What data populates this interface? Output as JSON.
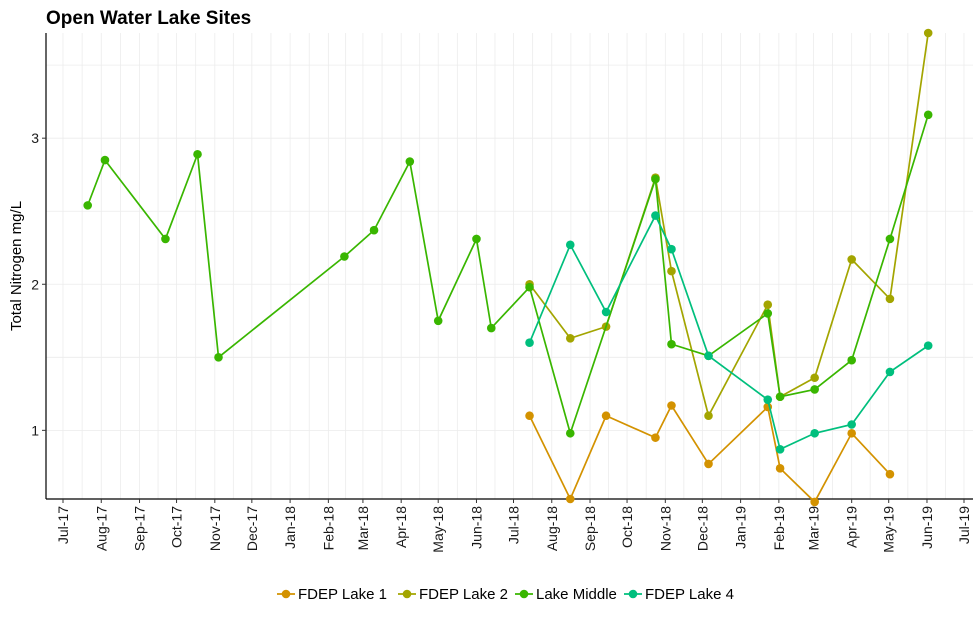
{
  "chart_data": {
    "type": "line",
    "title": "Open Water Lake Sites",
    "xlabel": "",
    "ylabel": "Total Nitrogen mg/L",
    "ylim": [
      0.53,
      3.72
    ],
    "yticks": [
      1,
      2,
      3
    ],
    "xlim": [
      "2017-07-01",
      "2019-07-01"
    ],
    "xtick_labels": [
      "Jul-17",
      "Aug-17",
      "Sep-17",
      "Oct-17",
      "Nov-17",
      "Dec-17",
      "Jan-18",
      "Feb-18",
      "Mar-18",
      "Apr-18",
      "May-18",
      "Jun-18",
      "Jul-18",
      "Aug-18",
      "Sep-18",
      "Oct-18",
      "Nov-18",
      "Dec-18",
      "Jan-19",
      "Feb-19",
      "Mar-19",
      "Apr-19",
      "May-19",
      "Jun-19",
      "Jul-19"
    ],
    "grid": true,
    "legend_position": "bottom",
    "series": [
      {
        "name": "FDEP Lake 1",
        "color": "#D39200",
        "points": [
          [
            "2018-07-14",
            1.1
          ],
          [
            "2018-08-16",
            0.53
          ],
          [
            "2018-09-14",
            1.1
          ],
          [
            "2018-10-24",
            0.95
          ],
          [
            "2018-11-06",
            1.17
          ],
          [
            "2018-12-06",
            0.77
          ],
          [
            "2019-01-23",
            1.16
          ],
          [
            "2019-02-02",
            0.74
          ],
          [
            "2019-03-02",
            0.51
          ],
          [
            "2019-04-01",
            0.98
          ],
          [
            "2019-05-02",
            0.7
          ]
        ]
      },
      {
        "name": "FDEP Lake 2",
        "color": "#A3A500",
        "points": [
          [
            "2018-07-14",
            2.0
          ],
          [
            "2018-08-16",
            1.63
          ],
          [
            "2018-09-14",
            1.71
          ],
          [
            "2018-10-24",
            2.73
          ],
          [
            "2018-11-06",
            2.09
          ],
          [
            "2018-12-06",
            1.1
          ],
          [
            "2019-01-23",
            1.86
          ],
          [
            "2019-02-02",
            1.23
          ],
          [
            "2019-03-02",
            1.36
          ],
          [
            "2019-04-01",
            2.17
          ],
          [
            "2019-05-02",
            1.9
          ],
          [
            "2019-06-02",
            3.72
          ]
        ]
      },
      {
        "name": "Lake Middle",
        "color": "#39B600",
        "points": [
          [
            "2017-07-21",
            2.54
          ],
          [
            "2017-08-04",
            2.85
          ],
          [
            "2017-09-22",
            2.31
          ],
          [
            "2017-10-18",
            2.89
          ],
          [
            "2017-11-04",
            1.5
          ],
          [
            "2018-02-14",
            2.19
          ],
          [
            "2018-03-10",
            2.37
          ],
          [
            "2018-04-08",
            2.84
          ],
          [
            "2018-05-01",
            1.75
          ],
          [
            "2018-06-01",
            2.31
          ],
          [
            "2018-06-13",
            1.7
          ],
          [
            "2018-07-14",
            1.98
          ],
          [
            "2018-08-16",
            0.98
          ],
          [
            "2018-10-24",
            2.72
          ],
          [
            "2018-11-06",
            1.59
          ],
          [
            "2018-12-06",
            1.51
          ],
          [
            "2019-01-23",
            1.8
          ],
          [
            "2019-02-02",
            1.23
          ],
          [
            "2019-03-02",
            1.28
          ],
          [
            "2019-04-01",
            1.48
          ],
          [
            "2019-05-02",
            2.31
          ],
          [
            "2019-06-02",
            3.16
          ]
        ]
      },
      {
        "name": "FDEP Lake 4",
        "color": "#00BF7D",
        "points": [
          [
            "2018-07-14",
            1.6
          ],
          [
            "2018-08-16",
            2.27
          ],
          [
            "2018-09-14",
            1.81
          ],
          [
            "2018-10-24",
            2.47
          ],
          [
            "2018-11-06",
            2.24
          ],
          [
            "2018-12-06",
            1.51
          ],
          [
            "2019-01-23",
            1.21
          ],
          [
            "2019-02-02",
            0.87
          ],
          [
            "2019-03-02",
            0.98
          ],
          [
            "2019-04-01",
            1.04
          ],
          [
            "2019-05-02",
            1.4
          ],
          [
            "2019-06-02",
            1.58
          ]
        ]
      }
    ]
  }
}
